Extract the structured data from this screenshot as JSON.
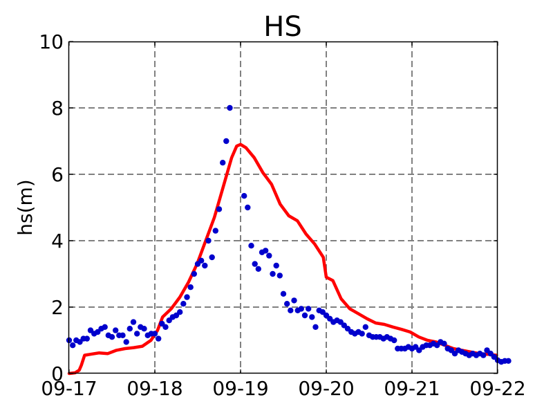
{
  "chart_data": {
    "type": "scatter",
    "title": "HS",
    "xlabel": "",
    "ylabel": "hs(m)",
    "x_range": [
      "09-17",
      "09-22"
    ],
    "x_ticks": [
      "09-17",
      "09-18",
      "09-19",
      "09-20",
      "09-21",
      "09-22"
    ],
    "ylim": [
      0,
      10
    ],
    "y_ticks": [
      "0",
      "2",
      "4",
      "6",
      "8",
      "10"
    ],
    "grid": true,
    "legend": "none",
    "colors": {
      "observed": "#0000cc",
      "model": "#ff0000",
      "grid": "#808080"
    },
    "series": [
      {
        "kind": "line",
        "color": "#ff0000",
        "points": [
          [
            "09-17 00:00",
            0.0
          ],
          [
            "09-17 01:40",
            0.02
          ],
          [
            "09-17 02:50",
            0.1
          ],
          [
            "09-17 03:25",
            0.25
          ],
          [
            "09-17 04:20",
            0.55
          ],
          [
            "09-17 06:00",
            0.58
          ],
          [
            "09-17 08:25",
            0.62
          ],
          [
            "09-17 10:50",
            0.6
          ],
          [
            "09-17 13:15",
            0.7
          ],
          [
            "09-17 15:40",
            0.75
          ],
          [
            "09-17 18:05",
            0.78
          ],
          [
            "09-17 20:30",
            0.82
          ],
          [
            "09-17 22:55",
            1.0
          ],
          [
            "09-18 00:45",
            1.3
          ],
          [
            "09-18 02:10",
            1.7
          ],
          [
            "09-18 04:35",
            1.95
          ],
          [
            "09-18 07:00",
            2.3
          ],
          [
            "09-18 09:25",
            2.75
          ],
          [
            "09-18 11:50",
            3.3
          ],
          [
            "09-18 14:15",
            4.0
          ],
          [
            "09-18 16:40",
            4.7
          ],
          [
            "09-18 19:05",
            5.6
          ],
          [
            "09-18 21:30",
            6.5
          ],
          [
            "09-18 22:55",
            6.85
          ],
          [
            "09-19 00:00",
            6.9
          ],
          [
            "09-19 01:30",
            6.8
          ],
          [
            "09-19 03:50",
            6.5
          ],
          [
            "09-19 06:15",
            6.05
          ],
          [
            "09-19 08:40",
            5.7
          ],
          [
            "09-19 11:05",
            5.1
          ],
          [
            "09-19 13:30",
            4.75
          ],
          [
            "09-19 15:55",
            4.6
          ],
          [
            "09-19 18:20",
            4.2
          ],
          [
            "09-19 20:45",
            3.9
          ],
          [
            "09-19 23:10",
            3.5
          ],
          [
            "09-20 00:00",
            2.9
          ],
          [
            "09-20 01:50",
            2.8
          ],
          [
            "09-20 04:10",
            2.25
          ],
          [
            "09-20 06:35",
            1.95
          ],
          [
            "09-20 09:00",
            1.8
          ],
          [
            "09-20 11:25",
            1.65
          ],
          [
            "09-20 13:50",
            1.52
          ],
          [
            "09-20 16:15",
            1.48
          ],
          [
            "09-20 18:40",
            1.4
          ],
          [
            "09-20 21:05",
            1.33
          ],
          [
            "09-20 23:30",
            1.25
          ],
          [
            "09-21 01:55",
            1.1
          ],
          [
            "09-21 04:20",
            1.0
          ],
          [
            "09-21 06:45",
            0.95
          ],
          [
            "09-21 09:10",
            0.85
          ],
          [
            "09-21 11:35",
            0.75
          ],
          [
            "09-21 14:00",
            0.7
          ],
          [
            "09-21 16:25",
            0.65
          ],
          [
            "09-21 18:50",
            0.6
          ],
          [
            "09-21 21:15",
            0.58
          ],
          [
            "09-21 23:40",
            0.55
          ]
        ]
      },
      {
        "kind": "scatter",
        "color": "#0000cc",
        "points": [
          [
            "09-17 00:00",
            1.0
          ],
          [
            "09-17 01:00",
            0.85
          ],
          [
            "09-17 02:00",
            1.0
          ],
          [
            "09-17 03:00",
            0.95
          ],
          [
            "09-17 04:00",
            1.05
          ],
          [
            "09-17 05:00",
            1.05
          ],
          [
            "09-17 06:00",
            1.3
          ],
          [
            "09-17 07:00",
            1.2
          ],
          [
            "09-17 08:00",
            1.25
          ],
          [
            "09-17 09:00",
            1.35
          ],
          [
            "09-17 10:00",
            1.4
          ],
          [
            "09-17 11:00",
            1.15
          ],
          [
            "09-17 12:00",
            1.1
          ],
          [
            "09-17 13:00",
            1.3
          ],
          [
            "09-17 14:00",
            1.15
          ],
          [
            "09-17 15:00",
            1.15
          ],
          [
            "09-17 16:00",
            0.95
          ],
          [
            "09-17 17:00",
            1.35
          ],
          [
            "09-17 18:00",
            1.55
          ],
          [
            "09-17 19:00",
            1.2
          ],
          [
            "09-17 20:00",
            1.4
          ],
          [
            "09-17 21:00",
            1.35
          ],
          [
            "09-17 22:00",
            1.15
          ],
          [
            "09-17 23:00",
            1.2
          ],
          [
            "09-18 00:00",
            1.2
          ],
          [
            "09-18 01:00",
            1.05
          ],
          [
            "09-18 02:00",
            1.5
          ],
          [
            "09-18 03:00",
            1.4
          ],
          [
            "09-18 04:00",
            1.6
          ],
          [
            "09-18 05:00",
            1.7
          ],
          [
            "09-18 06:00",
            1.75
          ],
          [
            "09-18 07:00",
            1.85
          ],
          [
            "09-18 08:00",
            2.1
          ],
          [
            "09-18 09:00",
            2.3
          ],
          [
            "09-18 10:00",
            2.6
          ],
          [
            "09-18 11:00",
            3.0
          ],
          [
            "09-18 12:00",
            3.3
          ],
          [
            "09-18 13:00",
            3.4
          ],
          [
            "09-18 14:00",
            3.25
          ],
          [
            "09-18 15:00",
            4.0
          ],
          [
            "09-18 16:00",
            3.5
          ],
          [
            "09-18 17:00",
            4.3
          ],
          [
            "09-18 18:00",
            4.95
          ],
          [
            "09-18 19:00",
            6.35
          ],
          [
            "09-18 20:00",
            7.0
          ],
          [
            "09-18 21:00",
            8.0
          ],
          [
            "09-19 01:00",
            5.35
          ],
          [
            "09-19 02:00",
            5.0
          ],
          [
            "09-19 03:00",
            3.85
          ],
          [
            "09-19 04:00",
            3.3
          ],
          [
            "09-19 05:00",
            3.15
          ],
          [
            "09-19 06:00",
            3.65
          ],
          [
            "09-19 07:00",
            3.7
          ],
          [
            "09-19 08:00",
            3.55
          ],
          [
            "09-19 09:00",
            3.0
          ],
          [
            "09-19 10:00",
            3.25
          ],
          [
            "09-19 11:00",
            2.95
          ],
          [
            "09-19 12:00",
            2.4
          ],
          [
            "09-19 13:00",
            2.1
          ],
          [
            "09-19 14:00",
            1.9
          ],
          [
            "09-19 15:00",
            2.2
          ],
          [
            "09-19 16:00",
            1.9
          ],
          [
            "09-19 17:00",
            1.95
          ],
          [
            "09-19 18:00",
            1.75
          ],
          [
            "09-19 19:00",
            1.95
          ],
          [
            "09-19 20:00",
            1.7
          ],
          [
            "09-19 21:00",
            1.4
          ],
          [
            "09-19 22:00",
            1.9
          ],
          [
            "09-19 23:00",
            1.85
          ],
          [
            "09-20 00:00",
            1.75
          ],
          [
            "09-20 01:00",
            1.65
          ],
          [
            "09-20 02:00",
            1.55
          ],
          [
            "09-20 03:00",
            1.6
          ],
          [
            "09-20 04:00",
            1.55
          ],
          [
            "09-20 05:00",
            1.45
          ],
          [
            "09-20 06:00",
            1.35
          ],
          [
            "09-20 07:00",
            1.25
          ],
          [
            "09-20 08:00",
            1.2
          ],
          [
            "09-20 09:00",
            1.25
          ],
          [
            "09-20 10:00",
            1.2
          ],
          [
            "09-20 11:00",
            1.4
          ],
          [
            "09-20 12:00",
            1.15
          ],
          [
            "09-20 13:00",
            1.1
          ],
          [
            "09-20 14:00",
            1.1
          ],
          [
            "09-20 15:00",
            1.1
          ],
          [
            "09-20 16:00",
            1.05
          ],
          [
            "09-20 17:00",
            1.1
          ],
          [
            "09-20 18:00",
            1.05
          ],
          [
            "09-20 19:00",
            1.0
          ],
          [
            "09-20 20:00",
            0.75
          ],
          [
            "09-20 21:00",
            0.75
          ],
          [
            "09-20 22:00",
            0.75
          ],
          [
            "09-20 23:00",
            0.8
          ],
          [
            "09-21 00:00",
            0.75
          ],
          [
            "09-21 01:00",
            0.8
          ],
          [
            "09-21 02:00",
            0.7
          ],
          [
            "09-21 03:00",
            0.8
          ],
          [
            "09-21 04:00",
            0.85
          ],
          [
            "09-21 05:00",
            0.85
          ],
          [
            "09-21 06:00",
            0.9
          ],
          [
            "09-21 07:00",
            0.85
          ],
          [
            "09-21 08:00",
            0.95
          ],
          [
            "09-21 09:00",
            0.9
          ],
          [
            "09-21 10:00",
            0.75
          ],
          [
            "09-21 11:00",
            0.7
          ],
          [
            "09-21 12:00",
            0.6
          ],
          [
            "09-21 13:00",
            0.7
          ],
          [
            "09-21 14:00",
            0.65
          ],
          [
            "09-21 15:00",
            0.6
          ],
          [
            "09-21 16:00",
            0.55
          ],
          [
            "09-21 17:00",
            0.6
          ],
          [
            "09-21 18:00",
            0.55
          ],
          [
            "09-21 19:00",
            0.6
          ],
          [
            "09-21 20:00",
            0.55
          ],
          [
            "09-21 21:00",
            0.7
          ],
          [
            "09-21 22:00",
            0.6
          ],
          [
            "09-21 23:00",
            0.5
          ],
          [
            "09-22 00:00",
            0.4
          ],
          [
            "09-22 01:00",
            0.35
          ],
          [
            "09-22 02:00",
            0.38
          ],
          [
            "09-22 03:00",
            0.38
          ]
        ]
      }
    ]
  }
}
